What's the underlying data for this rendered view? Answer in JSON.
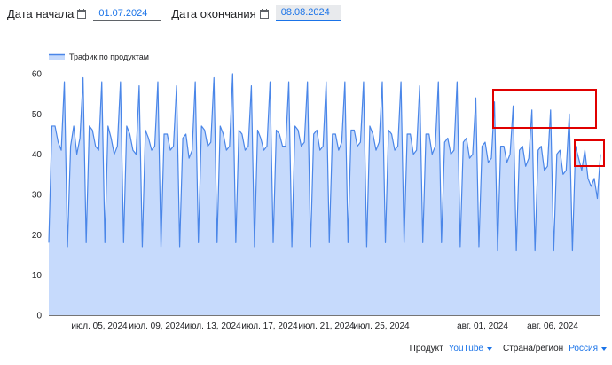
{
  "date_range": {
    "start": {
      "label": "Дата начала",
      "value": "01.07.2024"
    },
    "end": {
      "label": "Дата окончания",
      "value": "08.08.2024"
    }
  },
  "legend": {
    "label": "Трафик по продуктам"
  },
  "filters": {
    "product": {
      "label": "Продукт",
      "value": "YouTube"
    },
    "country": {
      "label": "Страна/регион",
      "value": "Россия"
    }
  },
  "colors": {
    "line": "#4a86e8",
    "fill": "#c6dafc",
    "highlight": "#e00000",
    "axis": "#757575"
  },
  "icons": [
    "calendar-icon",
    "chevron-down-icon"
  ],
  "chart_data": {
    "type": "area",
    "ylim": [
      0,
      60
    ],
    "yticks": [
      0,
      10,
      20,
      30,
      40,
      50,
      60
    ],
    "xtick_labels": [
      "июл. 05, 2024",
      "июл. 09, 2024",
      "июл. 13, 2024",
      "июл. 17, 2024",
      "июл. 21, 2024",
      "июл. 25, 2024",
      "авг. 01, 2024",
      "авг. 06, 2024"
    ],
    "series": [
      {
        "name": "Трафик по продуктам",
        "values": [
          18,
          47,
          47,
          43,
          41,
          58,
          17,
          42,
          47,
          40,
          44,
          59,
          18,
          47,
          46,
          42,
          41,
          58,
          18,
          47,
          44,
          40,
          42,
          58,
          18,
          47,
          45,
          41,
          40,
          57,
          17,
          46,
          44,
          41,
          42,
          58,
          17,
          45,
          45,
          41,
          42,
          57,
          17,
          44,
          45,
          39,
          41,
          58,
          18,
          47,
          46,
          42,
          43,
          59,
          18,
          47,
          45,
          41,
          42,
          60,
          18,
          46,
          45,
          41,
          42,
          57,
          17,
          46,
          44,
          41,
          42,
          58,
          18,
          46,
          45,
          42,
          42,
          58,
          17,
          47,
          46,
          42,
          43,
          58,
          17,
          45,
          46,
          41,
          42,
          58,
          18,
          45,
          45,
          41,
          43,
          58,
          18,
          46,
          46,
          42,
          43,
          58,
          17,
          47,
          45,
          41,
          43,
          58,
          18,
          46,
          45,
          41,
          42,
          58,
          18,
          45,
          45,
          40,
          41,
          57,
          18,
          45,
          45,
          40,
          42,
          58,
          18,
          43,
          44,
          40,
          41,
          58,
          17,
          43,
          44,
          39,
          40,
          54,
          17,
          42,
          43,
          38,
          39,
          53,
          16,
          42,
          42,
          38,
          40,
          52,
          16,
          41,
          42,
          37,
          39,
          51,
          16,
          41,
          42,
          36,
          37,
          51,
          16,
          40,
          41,
          35,
          36,
          50,
          16,
          42,
          39,
          36,
          41,
          34,
          32,
          34,
          29,
          40
        ]
      }
    ]
  }
}
